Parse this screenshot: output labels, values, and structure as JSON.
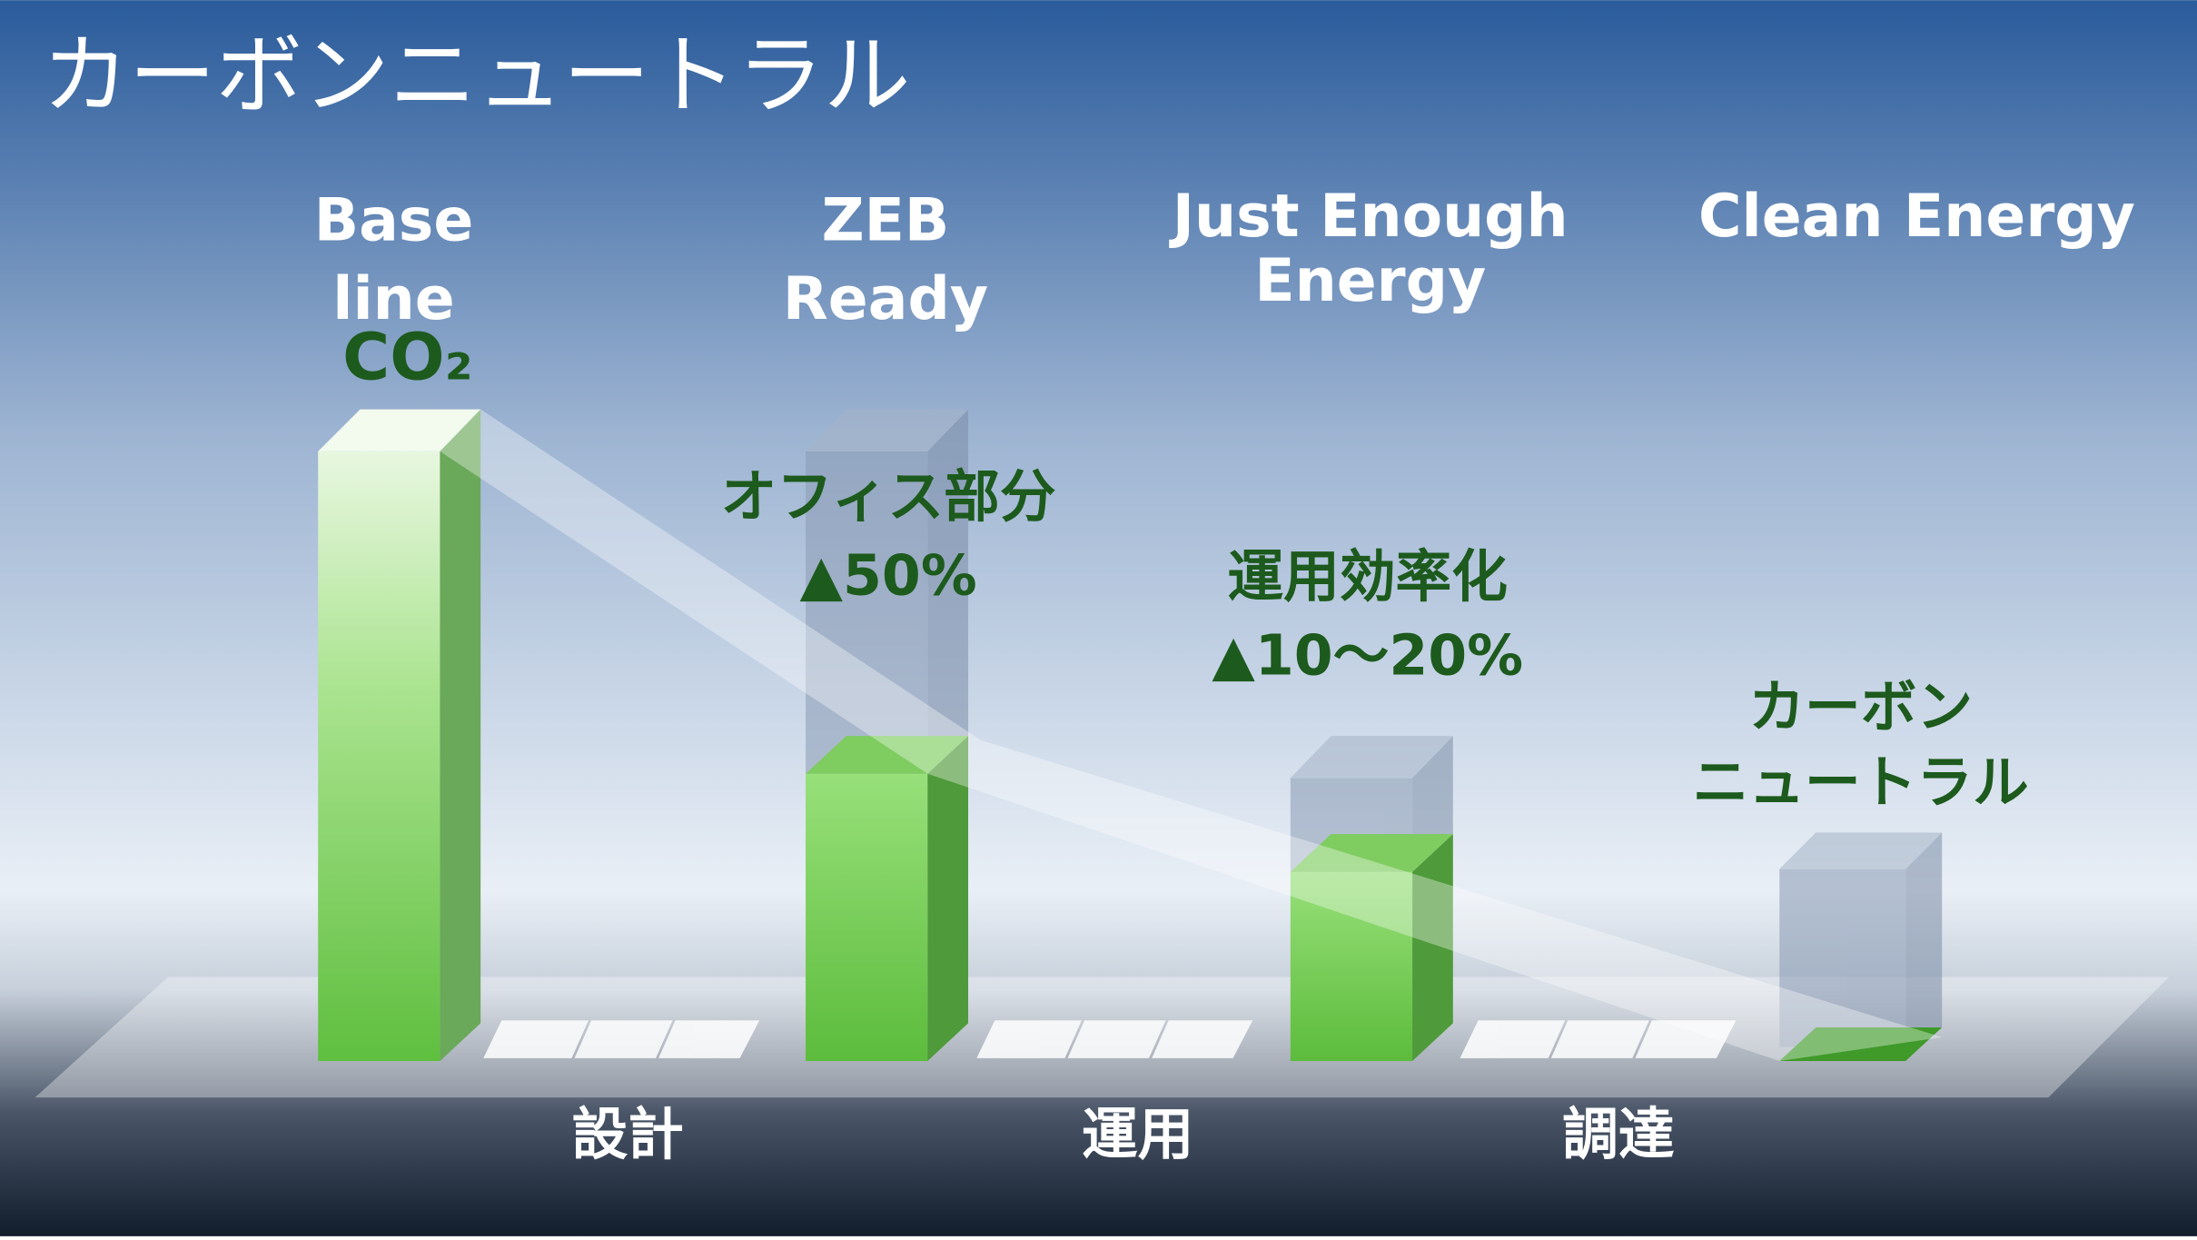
{
  "title": "カーボンニュートラル",
  "stages": [
    {
      "label": [
        "Base",
        "line"
      ],
      "note": [
        "CO₂"
      ]
    },
    {
      "label": [
        "ZEB",
        "Ready"
      ],
      "note": [
        "オフィス部分",
        "▲50%"
      ]
    },
    {
      "label": [
        "Just Enough",
        "Energy"
      ],
      "note": [
        "運用効率化",
        "▲10〜20%"
      ]
    },
    {
      "label": [
        "Clean Energy"
      ],
      "note": [
        "カーボン",
        "ニュートラル"
      ]
    }
  ],
  "phases": [
    "設計",
    "運用",
    "調達"
  ]
}
